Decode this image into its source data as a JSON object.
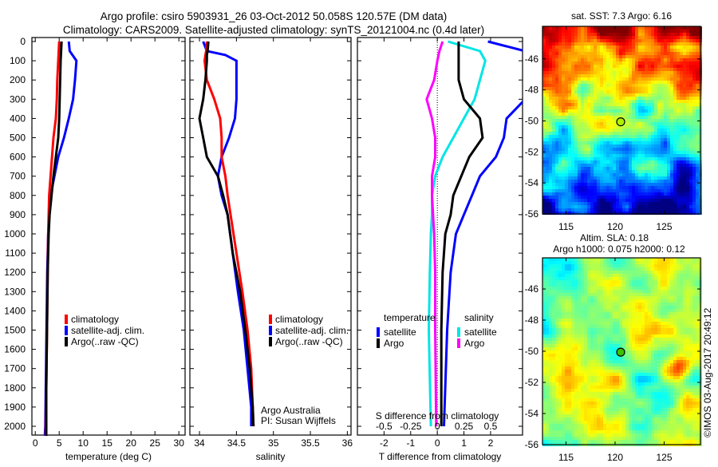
{
  "header": {
    "title_line1": "Argo profile: csiro 5903931_26 03-Oct-2012 50.058S 120.57E (DM data)",
    "title_line2": "Climatology: CARS2009. Satellite-adjusted climatology: synTS_20121004.nc (0.4d later)"
  },
  "credit": {
    "line1": "Argo Australia",
    "line2": "PI: Susan Wijffels"
  },
  "copyright": "©IMOS 03-Aug-2017 20:49:12",
  "colors": {
    "climatology": "#ff0000",
    "satellite": "#0000ff",
    "argo": "#000000",
    "sal_satellite": "#00e5e5",
    "sal_argo": "#ff00ff"
  },
  "chart_data": [
    {
      "type": "line",
      "xlabel": "temperature (deg C)",
      "xticks": [
        0,
        5,
        10,
        15,
        20,
        25,
        30
      ],
      "xlim": [
        -0.7,
        31.3
      ],
      "ylim": [
        0,
        2050
      ],
      "yticks": [
        0,
        100,
        200,
        300,
        400,
        500,
        600,
        700,
        800,
        900,
        1000,
        1100,
        1200,
        1300,
        1400,
        1500,
        1600,
        1700,
        1800,
        1900,
        2000
      ],
      "legend": [
        "climatology",
        "satellite-adj. clim.",
        "Argo(..raw -QC)"
      ],
      "depth": [
        0,
        50,
        100,
        200,
        300,
        400,
        500,
        600,
        700,
        800,
        900,
        1000,
        1200,
        1400,
        1600,
        1800,
        2000,
        2050
      ],
      "series": [
        {
          "name": "climatology",
          "values": [
            5.0,
            4.9,
            4.8,
            4.6,
            4.5,
            4.3,
            3.8,
            3.5,
            3.2,
            2.9,
            2.8,
            2.7,
            2.6,
            2.5,
            2.4,
            2.3,
            2.2,
            2.2
          ]
        },
        {
          "name": "satellite-adj. clim.",
          "values": [
            7.0,
            7.2,
            8.6,
            8.3,
            7.9,
            7.0,
            6.0,
            4.8,
            4.0,
            3.2,
            2.9,
            2.7,
            2.5,
            2.4,
            2.3,
            2.2,
            2.1,
            2.0
          ]
        },
        {
          "name": "Argo(..raw -QC)",
          "values": [
            5.5,
            5.4,
            5.3,
            5.2,
            5.1,
            5.0,
            4.8,
            4.3,
            3.8,
            3.4,
            3.0,
            2.8,
            2.6,
            2.5,
            2.4,
            2.3,
            2.3,
            2.3
          ]
        }
      ]
    },
    {
      "type": "line",
      "xlabel": "salinity",
      "xticks": [
        34,
        34.5,
        35,
        35.5,
        36
      ],
      "xlim": [
        33.87,
        36.05
      ],
      "ylim": [
        0,
        2050
      ],
      "legend": [
        "climatology",
        "satellite-adj. clim.",
        "Argo(..raw -QC)"
      ],
      "depth": [
        0,
        50,
        70,
        100,
        200,
        300,
        400,
        500,
        600,
        700,
        800,
        900,
        1100,
        1300,
        1500,
        1700,
        1900,
        2000
      ],
      "series": [
        {
          "name": "climatology",
          "values": [
            34.1,
            34.09,
            34.08,
            34.07,
            34.1,
            34.2,
            34.28,
            34.3,
            34.3,
            34.35,
            34.38,
            34.42,
            34.5,
            34.58,
            34.65,
            34.7,
            34.72,
            34.73
          ]
        },
        {
          "name": "satellite-adj. clim.",
          "values": [
            34.05,
            34.1,
            34.35,
            34.5,
            34.5,
            34.5,
            34.48,
            34.4,
            34.3,
            34.25,
            34.3,
            34.38,
            34.45,
            34.52,
            34.6,
            34.65,
            34.7,
            34.7
          ]
        },
        {
          "name": "Argo(..raw -QC)",
          "values": [
            34.12,
            34.11,
            34.1,
            34.1,
            34.08,
            34.05,
            34.0,
            34.05,
            34.1,
            34.25,
            34.32,
            34.38,
            34.45,
            34.55,
            34.62,
            34.68,
            34.72,
            34.73
          ]
        }
      ]
    },
    {
      "type": "line",
      "xlabel": "T difference from climatology",
      "xlabel2": "S difference from climatology",
      "xticks": [
        -2,
        -1,
        0,
        1,
        2
      ],
      "xticks2": [
        -0.5,
        -0.25,
        0,
        0.25,
        0.5
      ],
      "xtick2_labels": [
        "-0.5",
        "-0.25",
        "0",
        "0.25",
        "0.5"
      ],
      "xlim": [
        -3,
        3.2
      ],
      "xlim2": [
        -0.75,
        0.8
      ],
      "ylim": [
        0,
        2050
      ],
      "legend_titles": [
        "temperature",
        "salinity"
      ],
      "legend": [
        "satellite",
        "Argo",
        "satellite",
        "Argo"
      ],
      "depth": [
        0,
        50,
        100,
        200,
        300,
        400,
        500,
        600,
        700,
        800,
        900,
        1000,
        1200,
        1500,
        2000
      ],
      "series": [
        {
          "name": "temperature satellite",
          "axis": "T",
          "values": [
            1.9,
            3.3,
            3.4,
            3.5,
            3.3,
            2.6,
            2.5,
            2.2,
            1.6,
            1.3,
            1.0,
            0.7,
            0.5,
            0.37,
            0.25
          ]
        },
        {
          "name": "temperature Argo",
          "axis": "T",
          "values": [
            0.8,
            0.8,
            0.8,
            0.8,
            1.0,
            1.6,
            1.7,
            1.2,
            0.9,
            0.6,
            0.5,
            0.3,
            0.2,
            0.15,
            0.15
          ]
        },
        {
          "name": "salinity satellite",
          "axis": "S",
          "values": [
            0.1,
            0.4,
            0.45,
            0.4,
            0.35,
            0.25,
            0.15,
            0.05,
            -0.02,
            -0.05,
            -0.05,
            -0.06,
            -0.07,
            -0.08,
            -0.06
          ]
        },
        {
          "name": "salinity Argo",
          "axis": "S",
          "values": [
            0.05,
            0.02,
            0.0,
            -0.03,
            -0.1,
            -0.05,
            -0.02,
            -0.02,
            -0.05,
            -0.05,
            -0.04,
            -0.03,
            -0.02,
            -0.02,
            -0.01
          ]
        }
      ]
    },
    {
      "type": "heatmap",
      "title": "sat. SST: 7.3 Argo: 6.16",
      "xticks": [
        115,
        120,
        125
      ],
      "yticks": [
        -46,
        -48,
        -50,
        -52,
        -54,
        -56
      ],
      "xlim": [
        112.6,
        128.7
      ],
      "ylim": [
        -56,
        -43.9
      ],
      "marker": {
        "lon": 120.57,
        "lat": -50.058
      }
    },
    {
      "type": "heatmap",
      "title": "Altim. SLA: 0.18",
      "subtitle": "Argo h1000: 0.075 h2000: 0.12",
      "xticks": [
        115,
        120,
        125
      ],
      "yticks": [
        -46,
        -48,
        -50,
        -52,
        -54,
        -56
      ],
      "xlim": [
        112.6,
        128.7
      ],
      "ylim": [
        -56,
        -44
      ],
      "marker": {
        "lon": 120.57,
        "lat": -50.058
      }
    }
  ]
}
